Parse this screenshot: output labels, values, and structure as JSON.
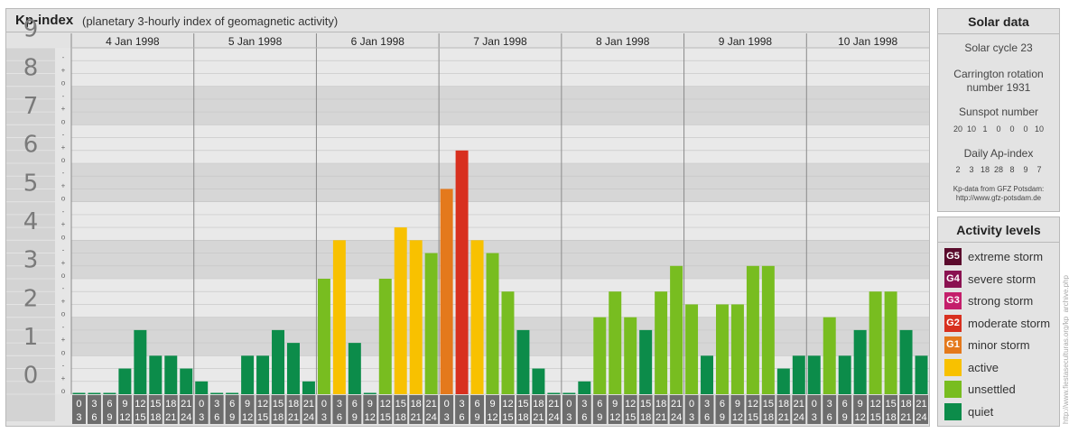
{
  "header": {
    "title": "Kp-index",
    "subtitle": "(planetary 3-hourly index of geomagnetic activity)"
  },
  "chart_data": {
    "type": "bar",
    "title": "Kp-index",
    "subtitle": "(planetary 3-hourly index of geomagnetic activity)",
    "ylim": [
      0,
      9
    ],
    "yticks": [
      "0",
      "1",
      "2",
      "3",
      "4",
      "5",
      "6",
      "7",
      "8",
      "9"
    ],
    "minor_tick_labels": [
      "o",
      "+",
      "-"
    ],
    "days": [
      "4 Jan 1998",
      "5 Jan 1998",
      "6 Jan 1998",
      "7 Jan 1998",
      "8 Jan 1998",
      "9 Jan 1998",
      "10 Jan 1998"
    ],
    "interval_start_labels": [
      "0",
      "3",
      "6",
      "9",
      "12",
      "15",
      "18",
      "21"
    ],
    "interval_end_labels": [
      "3",
      "6",
      "9",
      "12",
      "15",
      "18",
      "21",
      "24"
    ],
    "values": [
      0,
      0,
      0,
      0.667,
      1.667,
      1,
      1,
      0.667,
      0.333,
      0,
      0,
      1,
      1,
      1.667,
      1.333,
      0.333,
      3,
      4,
      1.333,
      0,
      3,
      4.333,
      4,
      3.667,
      5.333,
      6.333,
      4,
      3.667,
      2.667,
      1.667,
      0.667,
      0,
      0,
      0.333,
      2,
      2.667,
      2,
      1.667,
      2.667,
      3.333,
      2.333,
      1,
      2.333,
      2.333,
      3.333,
      3.333,
      0.667,
      1,
      1,
      2,
      1,
      1.667,
      2.667,
      2.667,
      1.667,
      1
    ],
    "colors": {
      "quiet": "#0c8c4a",
      "unsettled": "#78bd20",
      "active": "#f8c100",
      "minor": "#e4791c",
      "moderate": "#d8301f",
      "strong": "#c41f6b",
      "severe": "#8a1251",
      "extreme": "#5a0b2c"
    },
    "grid": true,
    "legend_position": "right"
  },
  "solar": {
    "title": "Solar data",
    "cycle": "Solar cycle 23",
    "carrington_line1": "Carrington rotation",
    "carrington_line2": "number 1931",
    "sunspot_title": "Sunspot number",
    "sunspot_values": [
      "20",
      "10",
      "1",
      "0",
      "0",
      "0",
      "10"
    ],
    "ap_title": "Daily Ap-index",
    "ap_values": [
      "2",
      "3",
      "18",
      "28",
      "8",
      "9",
      "7"
    ],
    "credit_line1": "Kp-data from GFZ Potsdam:",
    "credit_line2": "http://www.gfz-potsdam.de"
  },
  "activity": {
    "title": "Activity levels",
    "items": [
      {
        "badge": "G5",
        "label": "extreme storm",
        "color": "#5a0b2c"
      },
      {
        "badge": "G4",
        "label": "severe storm",
        "color": "#8a1251"
      },
      {
        "badge": "G3",
        "label": "strong storm",
        "color": "#c41f6b"
      },
      {
        "badge": "G2",
        "label": "moderate storm",
        "color": "#d8301f"
      },
      {
        "badge": "G1",
        "label": "minor storm",
        "color": "#e4791c"
      },
      {
        "badge": "",
        "label": "active",
        "color": "#f8c100"
      },
      {
        "badge": "",
        "label": "unsettled",
        "color": "#78bd20"
      },
      {
        "badge": "",
        "label": "quiet",
        "color": "#0c8c4a"
      }
    ]
  },
  "watermark": "http://www.fiestaseculturas.org/kp_archive.php"
}
